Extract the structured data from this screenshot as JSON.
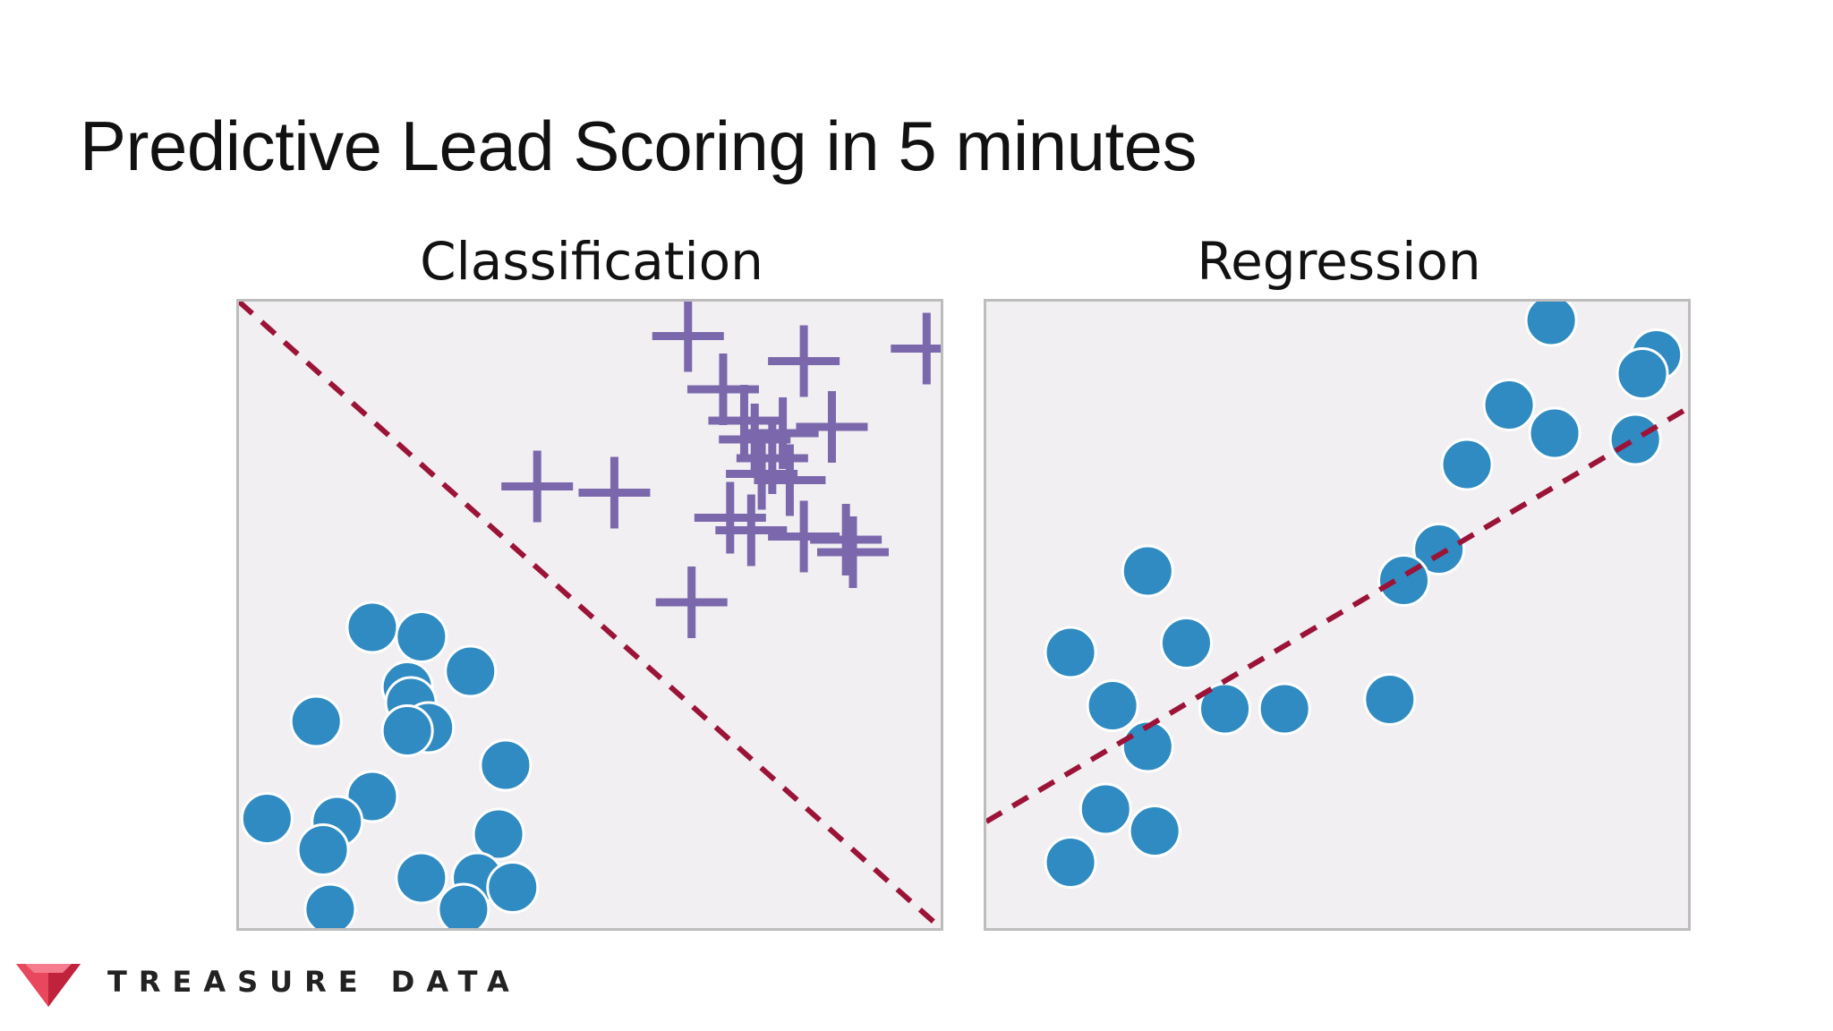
{
  "slide": {
    "title": "Predictive Lead Scoring in 5 minutes"
  },
  "footer": {
    "brand": "TREASURE DATA",
    "logo_icon": "gem-icon",
    "logo_colors": [
      "#e8475d",
      "#c0213b",
      "#f47c8c"
    ]
  },
  "colors": {
    "point": "#2f8bc2",
    "point_edge": "#ffffff",
    "plus": "#7b68ac",
    "boundary": "#9b1438",
    "panel_bg": "#f1eff2",
    "panel_border": "#bdbdbd"
  },
  "chart_data": [
    {
      "type": "scatter",
      "title": "Classification",
      "xlim": [
        0,
        100
      ],
      "ylim": [
        0,
        100
      ],
      "grid": false,
      "series": [
        {
          "marker": "circle",
          "points": [
            [
              19,
              48
            ],
            [
              26,
              46.5
            ],
            [
              33,
              41
            ],
            [
              11,
              33
            ],
            [
              24,
              38.5
            ],
            [
              24.5,
              36
            ],
            [
              27,
              32
            ],
            [
              24,
              31.5
            ],
            [
              38,
              26
            ],
            [
              19,
              21
            ],
            [
              4,
              17.5
            ],
            [
              14,
              17
            ],
            [
              12,
              12.5
            ],
            [
              37,
              15
            ],
            [
              26,
              8
            ],
            [
              34,
              8
            ],
            [
              39,
              6.5
            ],
            [
              13,
              3
            ],
            [
              32,
              3
            ]
          ]
        },
        {
          "marker": "plus",
          "points": [
            [
              64,
              94.5
            ],
            [
              69,
              86
            ],
            [
              80.5,
              90.5
            ],
            [
              98,
              92.5
            ],
            [
              72,
              81
            ],
            [
              73.5,
              78
            ],
            [
              76,
              75
            ],
            [
              77.5,
              79
            ],
            [
              84.5,
              80
            ],
            [
              74.5,
              72.5
            ],
            [
              78.5,
              71.5
            ],
            [
              42.5,
              70.5
            ],
            [
              53.5,
              69.5
            ],
            [
              70,
              65.5
            ],
            [
              73,
              63.5
            ],
            [
              80.5,
              62.5
            ],
            [
              86.5,
              62
            ],
            [
              87.5,
              60
            ],
            [
              64.5,
              52
            ]
          ]
        }
      ],
      "boundary": {
        "style": "dashed",
        "x1": 0,
        "y1": 100,
        "x2": 100,
        "y2": 0
      }
    },
    {
      "type": "scatter",
      "title": "Regression",
      "xlim": [
        0,
        100
      ],
      "ylim": [
        0,
        100
      ],
      "grid": false,
      "series": [
        {
          "marker": "circle",
          "points": [
            [
              80.5,
              97
            ],
            [
              95.5,
              91.5
            ],
            [
              93.5,
              88.5
            ],
            [
              74.5,
              83.5
            ],
            [
              81,
              79
            ],
            [
              68.5,
              74
            ],
            [
              92.5,
              78
            ],
            [
              64.5,
              60.5
            ],
            [
              59.5,
              55.5
            ],
            [
              23,
              57
            ],
            [
              28.5,
              45.5
            ],
            [
              12,
              44
            ],
            [
              18,
              35.5
            ],
            [
              34,
              35
            ],
            [
              42.5,
              35
            ],
            [
              57.5,
              36.5
            ],
            [
              23,
              29
            ],
            [
              17,
              19
            ],
            [
              24,
              15.5
            ],
            [
              12,
              10.5
            ]
          ]
        }
      ],
      "fit_line": {
        "style": "dashed",
        "x1": 0,
        "y1": 17,
        "x2": 100,
        "y2": 83
      }
    }
  ]
}
